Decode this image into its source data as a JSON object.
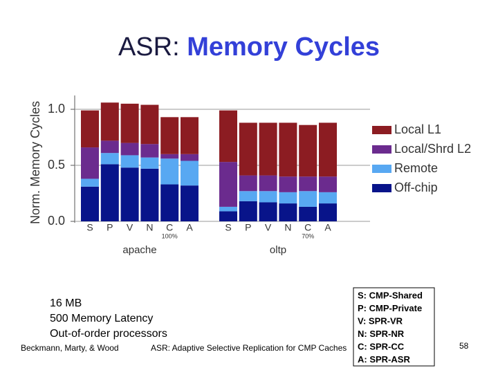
{
  "slide": {
    "title_parts": [
      "ASR:",
      "Memory Cycles"
    ],
    "notes": [
      "16 MB",
      "500 Memory Latency",
      "Out-of-order processors"
    ],
    "footer": {
      "authors": "Beckmann, Marty, & Wood",
      "paper": "ASR: Adaptive Selective Replication for CMP Caches",
      "page": "58"
    },
    "key": [
      "S: CMP-Shared",
      "P: CMP-Private",
      "V: SPR-VR",
      "N: SPR-NR",
      "C: SPR-CC",
      "A: SPR-ASR"
    ]
  },
  "chart_data": {
    "type": "stacked_bar",
    "y_label": "Norm. Memory Cycles",
    "categories": [
      "S",
      "P",
      "V",
      "N",
      "C",
      "A",
      "S",
      "P",
      "V",
      "N",
      "C",
      "A"
    ],
    "sublabels": [
      null,
      null,
      null,
      null,
      "100%",
      null,
      null,
      null,
      null,
      null,
      "70%",
      null
    ],
    "groups": [
      "apache",
      "oltp"
    ],
    "ylim": [
      0,
      1.1
    ],
    "yticks": [
      {
        "value": 0,
        "label": "0.0"
      },
      {
        "value": 0.5,
        "label": "0.5"
      },
      {
        "value": 1,
        "label": "1.0"
      }
    ],
    "grid": true,
    "series": [
      {
        "name": "Off-chip",
        "color": "#08148a",
        "values": [
          0.31,
          0.51,
          0.48,
          0.47,
          0.33,
          0.32,
          0.09,
          0.18,
          0.17,
          0.16,
          0.13,
          0.16
        ]
      },
      {
        "name": "Remote",
        "color": "#58a8f2",
        "values": [
          0.07,
          0.1,
          0.11,
          0.1,
          0.23,
          0.22,
          0.04,
          0.09,
          0.1,
          0.1,
          0.14,
          0.1
        ]
      },
      {
        "name": "Local/Shrd L2",
        "color": "#6b2b8e",
        "values": [
          0.28,
          0.11,
          0.11,
          0.12,
          0.04,
          0.06,
          0.4,
          0.14,
          0.14,
          0.14,
          0.13,
          0.14
        ]
      },
      {
        "name": "Local L1",
        "color": "#8c1c22",
        "values": [
          0.33,
          0.34,
          0.35,
          0.35,
          0.33,
          0.33,
          0.46,
          0.47,
          0.47,
          0.48,
          0.46,
          0.48
        ]
      }
    ]
  }
}
